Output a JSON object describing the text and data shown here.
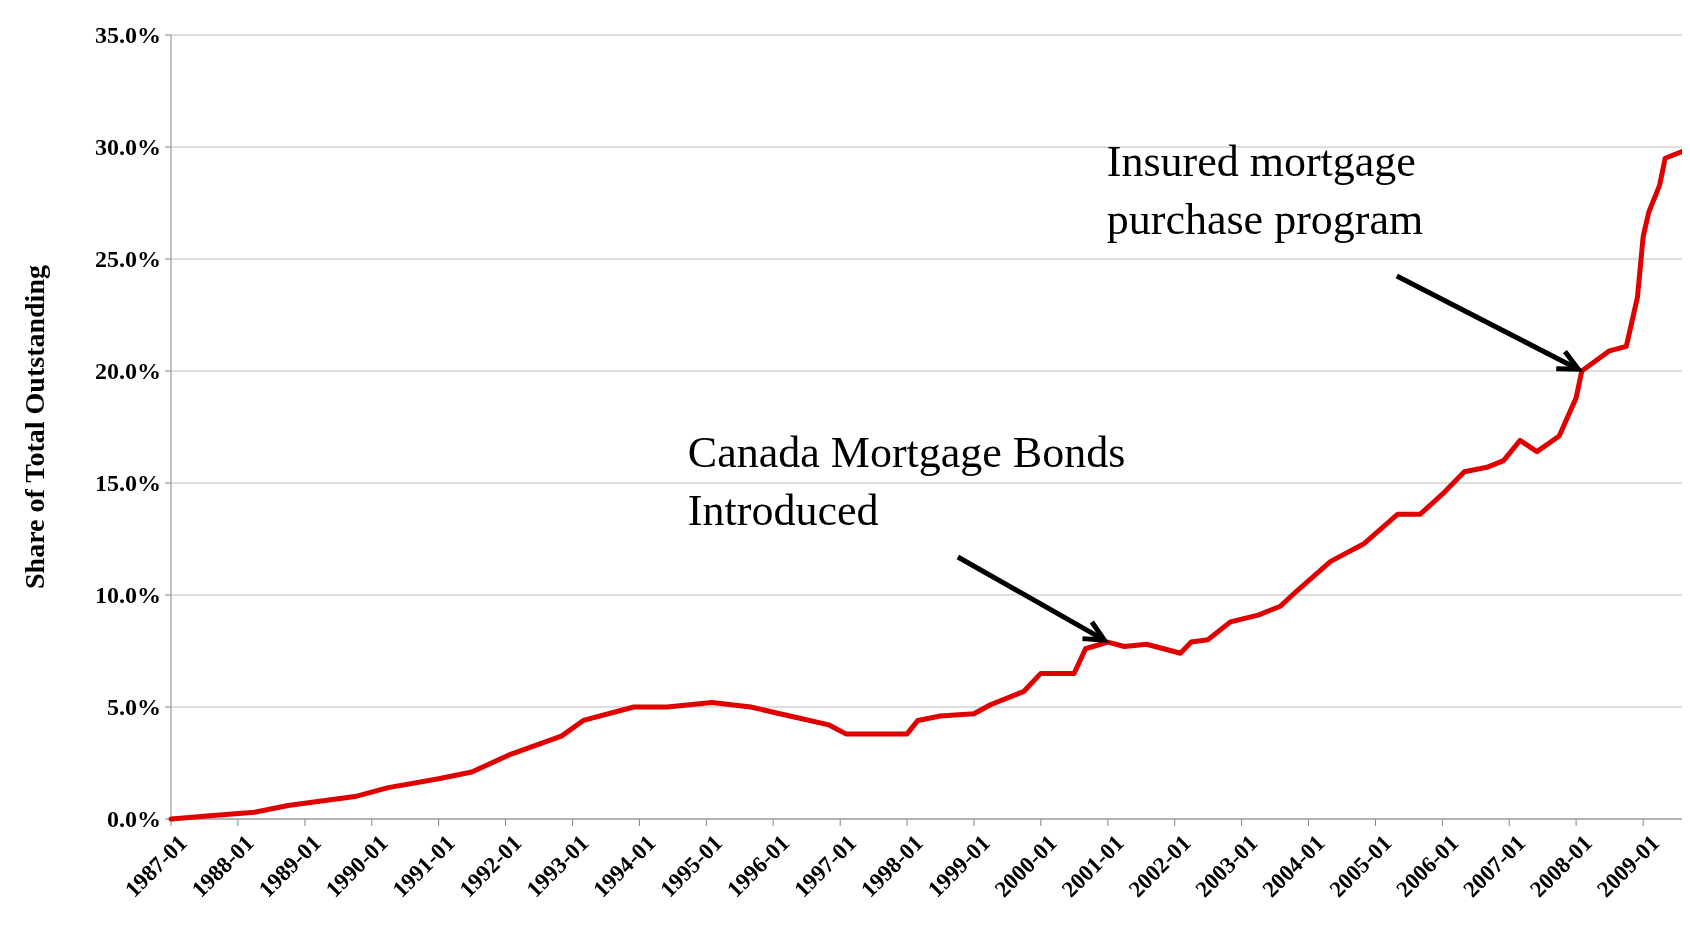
{
  "chart_data": {
    "type": "line",
    "ylabel": "Share of Total Outstanding",
    "x": [
      "1987-01",
      "1987-08",
      "1988-04",
      "1988-10",
      "1989-04",
      "1989-10",
      "1990-04",
      "1991-01",
      "1991-07",
      "1992-02",
      "1992-11",
      "1993-03",
      "1993-12",
      "1994-06",
      "1995-02",
      "1995-09",
      "1996-04",
      "1996-11",
      "1997-02",
      "1997-08",
      "1998-01",
      "1998-03",
      "1998-07",
      "1999-01",
      "1999-04",
      "1999-10",
      "2000-01",
      "2000-07",
      "2000-09",
      "2001-01",
      "2001-04",
      "2001-08",
      "2002-02",
      "2002-04",
      "2002-07",
      "2002-11",
      "2003-04",
      "2003-08",
      "2003-11",
      "2004-05",
      "2004-11",
      "2005-05",
      "2005-09",
      "2006-01",
      "2006-05",
      "2006-09",
      "2006-12",
      "2007-03",
      "2007-06",
      "2007-10",
      "2008-01",
      "2008-02",
      "2008-07",
      "2008-10",
      "2008-12",
      "2009-01",
      "2009-02",
      "2009-04",
      "2009-05",
      "2009-08"
    ],
    "series": [
      {
        "color": "#e00000",
        "values": [
          0.0,
          0.15,
          0.3,
          0.6,
          0.8,
          1.0,
          1.4,
          1.8,
          2.1,
          2.9,
          3.7,
          4.4,
          5.0,
          5.0,
          5.2,
          5.0,
          4.6,
          4.2,
          3.8,
          3.8,
          3.8,
          4.4,
          4.6,
          4.7,
          5.1,
          5.7,
          6.5,
          6.5,
          7.6,
          7.9,
          7.7,
          7.8,
          7.4,
          7.9,
          8.0,
          8.8,
          9.1,
          9.5,
          10.2,
          11.5,
          12.3,
          13.6,
          13.6,
          14.5,
          15.5,
          15.7,
          16.0,
          16.9,
          16.4,
          17.1,
          18.8,
          20.0,
          20.9,
          21.1,
          23.3,
          26.0,
          27.1,
          28.3,
          29.5,
          29.8
        ]
      }
    ],
    "xlim": [
      "1987-01",
      "2009-08"
    ],
    "xticks": [
      "1987-01",
      "1988-01",
      "1989-01",
      "1990-01",
      "1991-01",
      "1992-01",
      "1993-01",
      "1994-01",
      "1995-01",
      "1996-01",
      "1997-01",
      "1998-01",
      "1999-01",
      "2000-01",
      "2001-01",
      "2002-01",
      "2003-01",
      "2004-01",
      "2005-01",
      "2006-01",
      "2007-01",
      "2008-01",
      "2009-01"
    ],
    "ylim": [
      0,
      35
    ],
    "yticks": [
      {
        "value": 0,
        "label": "0.0%"
      },
      {
        "value": 5,
        "label": "5.0%"
      },
      {
        "value": 10,
        "label": "10.0%"
      },
      {
        "value": 15,
        "label": "15.0%"
      },
      {
        "value": 20,
        "label": "20.0%"
      },
      {
        "value": 25,
        "label": "25.0%"
      },
      {
        "value": 30,
        "label": "30.0%"
      },
      {
        "value": 35,
        "label": "35.0%"
      }
    ],
    "grid": "y",
    "marker": "none",
    "line_style": "solid",
    "annotations": [
      {
        "text": "Canada Mortgage Bonds\nIntroduced",
        "x": "2001-01",
        "y": 7.9
      },
      {
        "text": "Insured mortgage\npurchase program",
        "x": "2008-02",
        "y": 20.0
      }
    ]
  }
}
